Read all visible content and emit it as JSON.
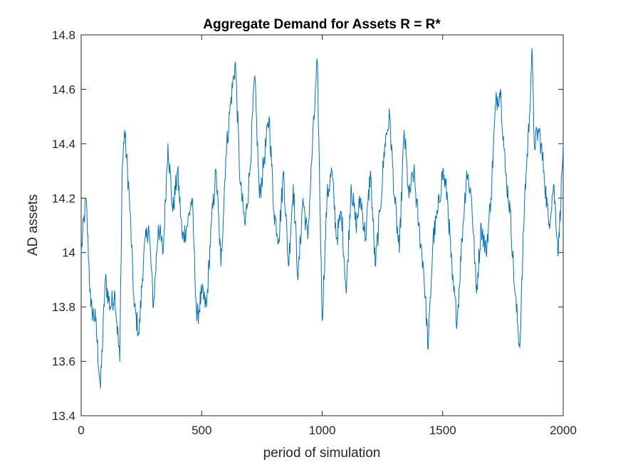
{
  "chart_data": {
    "type": "line",
    "title": "Aggregate Demand for Assets R = R*",
    "xlabel": "period of simulation",
    "ylabel": "AD assets",
    "xlim": [
      0,
      2000
    ],
    "ylim": [
      13.4,
      14.8
    ],
    "xticks": [
      0,
      500,
      1000,
      1500,
      2000
    ],
    "xtick_labels": [
      "0",
      "500",
      "1000",
      "1500",
      "2000"
    ],
    "yticks": [
      13.4,
      13.6,
      13.8,
      14.0,
      14.2,
      14.4,
      14.6,
      14.8
    ],
    "ytick_labels": [
      "13.4",
      "13.6",
      "13.8",
      "14",
      "14.2",
      "14.4",
      "14.6",
      "14.8"
    ],
    "grid": false,
    "series_color": "#0072BD",
    "series": [
      {
        "x": [
          0,
          20,
          40,
          60,
          80,
          100,
          120,
          140,
          160,
          170,
          180,
          200,
          220,
          240,
          260,
          280,
          300,
          320,
          340,
          360,
          380,
          400,
          420,
          440,
          460,
          480,
          500,
          520,
          540,
          560,
          580,
          600,
          620,
          640,
          660,
          680,
          700,
          720,
          740,
          760,
          780,
          800,
          820,
          840,
          860,
          880,
          900,
          920,
          940,
          960,
          980,
          1000,
          1020,
          1040,
          1060,
          1080,
          1100,
          1120,
          1140,
          1160,
          1180,
          1200,
          1220,
          1240,
          1260,
          1280,
          1300,
          1320,
          1340,
          1360,
          1380,
          1400,
          1420,
          1440,
          1460,
          1480,
          1500,
          1520,
          1540,
          1560,
          1580,
          1600,
          1620,
          1640,
          1660,
          1680,
          1700,
          1720,
          1740,
          1760,
          1780,
          1800,
          1820,
          1840,
          1860,
          1870,
          1880,
          1900,
          1920,
          1940,
          1960,
          1980,
          2000
        ],
        "y": [
          14.0,
          14.2,
          13.8,
          13.75,
          13.5,
          13.9,
          13.8,
          13.85,
          13.6,
          14.3,
          14.45,
          14.2,
          13.8,
          13.7,
          14.0,
          14.1,
          13.8,
          14.1,
          14.0,
          14.4,
          14.15,
          14.3,
          14.05,
          14.1,
          14.2,
          13.75,
          13.85,
          13.8,
          14.1,
          14.3,
          13.95,
          14.35,
          14.55,
          14.7,
          14.25,
          14.1,
          14.3,
          14.65,
          14.2,
          14.35,
          14.5,
          14.15,
          14.05,
          14.3,
          13.95,
          14.25,
          13.9,
          14.2,
          14.05,
          14.4,
          14.7,
          13.75,
          14.2,
          14.3,
          14.05,
          14.15,
          13.85,
          14.25,
          14.1,
          14.2,
          14.05,
          14.3,
          13.95,
          14.15,
          14.4,
          14.5,
          14.2,
          14.0,
          14.45,
          14.2,
          14.3,
          14.1,
          13.95,
          13.65,
          14.05,
          14.15,
          14.3,
          14.2,
          13.9,
          13.75,
          14.05,
          14.3,
          14.2,
          13.85,
          14.1,
          14.0,
          14.2,
          14.55,
          14.6,
          14.3,
          14.15,
          13.85,
          13.65,
          14.2,
          14.5,
          14.75,
          14.4,
          14.45,
          14.3,
          14.1,
          14.25,
          14.0,
          14.4
        ]
      }
    ]
  }
}
